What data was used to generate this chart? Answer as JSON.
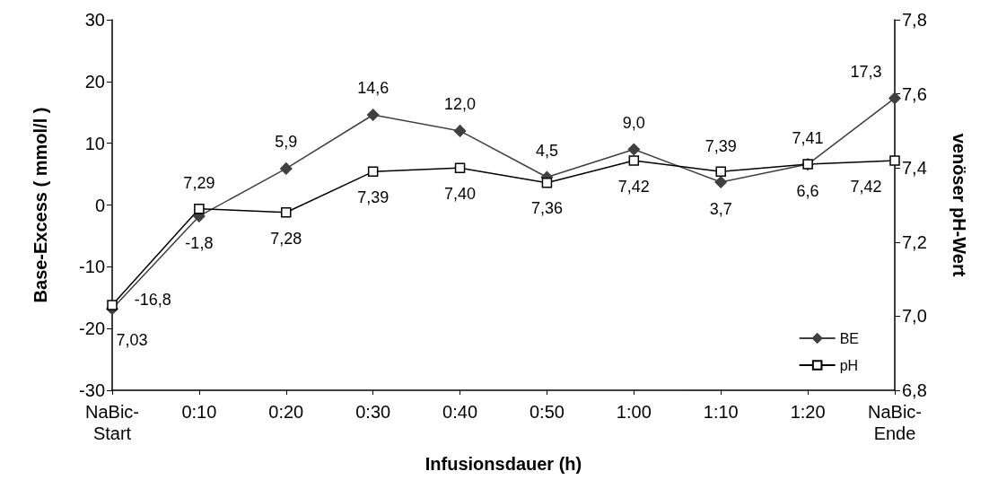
{
  "chart_data": {
    "type": "line",
    "xlabel": "Infusionsdauer (h)",
    "ylabel": "Base-Excess ( mmol/l )",
    "y2label": "venöser pH-Wert",
    "categories": [
      "NaBic-\nStart",
      "0:10",
      "0:20",
      "0:30",
      "0:40",
      "0:50",
      "1:00",
      "1:10",
      "1:20",
      "NaBic-\nEnde"
    ],
    "series": [
      {
        "name": "BE",
        "color": "#404040",
        "marker": "diamond",
        "values": [
          -16.8,
          -1.8,
          5.9,
          14.6,
          12.0,
          4.5,
          9.0,
          3.7,
          6.6,
          17.3
        ],
        "value_labels": [
          "-16,8",
          "-1,8",
          "5,9",
          "14,6",
          "12,0",
          "4,5",
          "9,0",
          "3,7",
          "6,6",
          "17,3"
        ]
      },
      {
        "name": "pH",
        "color": "#000000",
        "marker": "square",
        "axis": "y2",
        "values": [
          7.03,
          7.29,
          7.28,
          7.39,
          7.4,
          7.36,
          7.42,
          7.39,
          7.41,
          7.42
        ],
        "value_labels": [
          "7,03",
          "7,29",
          "7,28",
          "7,39",
          "7,40",
          "7,36",
          "7,42",
          "7,39",
          "7,41",
          "7,42"
        ]
      }
    ],
    "ylim": [
      -30,
      30
    ],
    "yticks": [
      -30,
      -20,
      -10,
      0,
      10,
      20,
      30
    ],
    "y2lim": [
      6.8,
      7.8
    ],
    "y2ticks": [
      {
        "value": 6.8,
        "label": "6,8"
      },
      {
        "value": 7.0,
        "label": "7,0"
      },
      {
        "value": 7.2,
        "label": "7,2"
      },
      {
        "value": 7.4,
        "label": "7,4"
      },
      {
        "value": 7.6,
        "label": "7,6"
      },
      {
        "value": 7.8,
        "label": "7,8"
      }
    ],
    "grid": false,
    "legend": "bottom right"
  }
}
